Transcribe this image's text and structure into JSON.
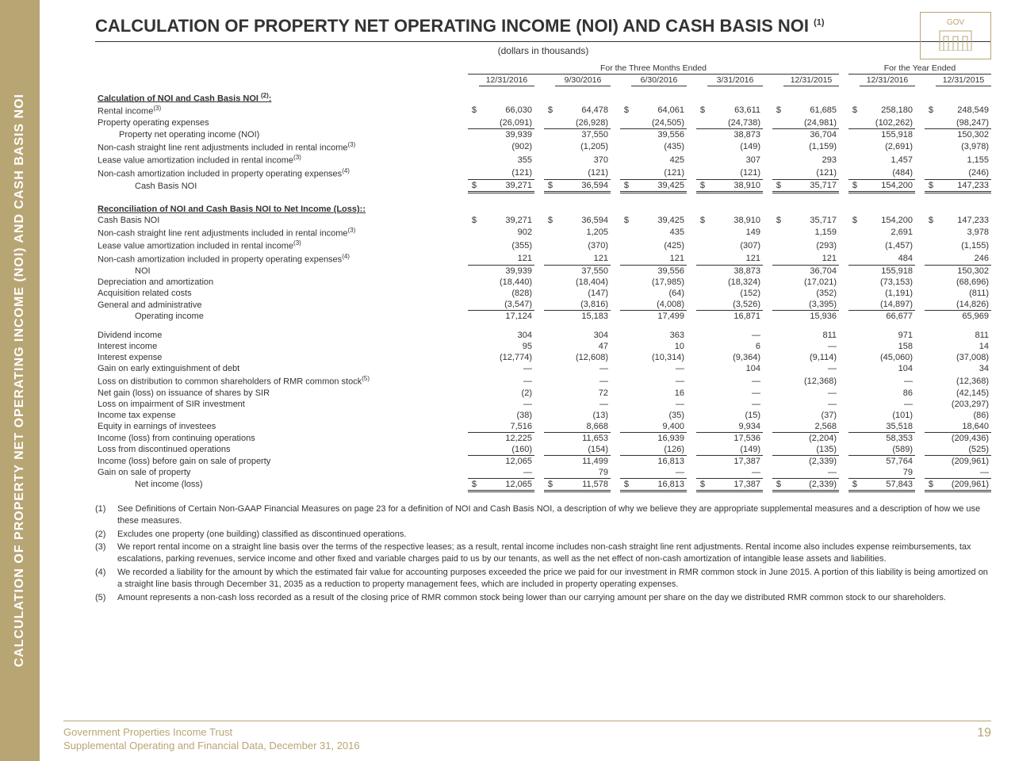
{
  "sidebar_title": "CALCULATION OF PROPERTY NET OPERATING INCOME (NOI) AND CASH BASIS NOI",
  "title": "CALCULATION OF PROPERTY NET OPERATING INCOME (NOI) AND CASH BASIS NOI",
  "title_sup": "(1)",
  "subtitle": "(dollars in thousands)",
  "logo_text": "GOV",
  "period_headers": {
    "three_months": "For the Three Months Ended",
    "year": "For the Year Ended"
  },
  "cols": [
    "12/31/2016",
    "9/30/2016",
    "6/30/2016",
    "3/31/2016",
    "12/31/2015",
    "12/31/2016",
    "12/31/2015"
  ],
  "section1": "Calculation of NOI and Cash Basis NOI",
  "section1_sup": "(2)",
  "section2": "Reconciliation of NOI and Cash Basis NOI to Net Income (Loss):",
  "rows": {
    "rental_income": {
      "l": "Rental income",
      "sup": "(3)",
      "d": true,
      "v": [
        "66,030",
        "64,478",
        "64,061",
        "63,611",
        "61,685",
        "258,180",
        "248,549"
      ]
    },
    "prop_op_exp": {
      "l": "Property operating expenses",
      "ul": true,
      "v": [
        "(26,091)",
        "(26,928)",
        "(24,505)",
        "(24,738)",
        "(24,981)",
        "(102,262)",
        "(98,247)"
      ]
    },
    "noi1": {
      "l": "Property net operating income (NOI)",
      "indent": 1,
      "v": [
        "39,939",
        "37,550",
        "39,556",
        "38,873",
        "36,704",
        "155,918",
        "150,302"
      ]
    },
    "noncash_sl1": {
      "l": "Non-cash straight line rent adjustments included in rental income",
      "sup": "(3)",
      "v": [
        "(902)",
        "(1,205)",
        "(435)",
        "(149)",
        "(1,159)",
        "(2,691)",
        "(3,978)"
      ]
    },
    "lease_val1": {
      "l": "Lease value amortization included in rental income",
      "sup": "(3)",
      "v": [
        "355",
        "370",
        "425",
        "307",
        "293",
        "1,457",
        "1,155"
      ]
    },
    "noncash_am1": {
      "l": "Non-cash amortization included in property operating expenses",
      "sup": "(4)",
      "ul": true,
      "v": [
        "(121)",
        "(121)",
        "(121)",
        "(121)",
        "(121)",
        "(484)",
        "(246)"
      ]
    },
    "cash_noi1": {
      "l": "Cash Basis NOI",
      "indent": 2,
      "d": true,
      "dbl": true,
      "v": [
        "39,271",
        "36,594",
        "39,425",
        "38,910",
        "35,717",
        "154,200",
        "147,233"
      ]
    },
    "cash_noi2": {
      "l": "Cash Basis NOI",
      "d": true,
      "v": [
        "39,271",
        "36,594",
        "39,425",
        "38,910",
        "35,717",
        "154,200",
        "147,233"
      ]
    },
    "noncash_sl2": {
      "l": "Non-cash straight line rent adjustments included in rental income",
      "sup": "(3)",
      "v": [
        "902",
        "1,205",
        "435",
        "149",
        "1,159",
        "2,691",
        "3,978"
      ]
    },
    "lease_val2": {
      "l": "Lease value amortization included in rental income",
      "sup": "(3)",
      "v": [
        "(355)",
        "(370)",
        "(425)",
        "(307)",
        "(293)",
        "(1,457)",
        "(1,155)"
      ]
    },
    "noncash_am2": {
      "l": "Non-cash amortization included in property operating expenses",
      "sup": "(4)",
      "ul": true,
      "v": [
        "121",
        "121",
        "121",
        "121",
        "121",
        "484",
        "246"
      ]
    },
    "noi2": {
      "l": "NOI",
      "indent": 2,
      "v": [
        "39,939",
        "37,550",
        "39,556",
        "38,873",
        "36,704",
        "155,918",
        "150,302"
      ]
    },
    "dep_am": {
      "l": "Depreciation and amortization",
      "v": [
        "(18,440)",
        "(18,404)",
        "(17,985)",
        "(18,324)",
        "(17,021)",
        "(73,153)",
        "(68,696)"
      ]
    },
    "acq": {
      "l": "Acquisition related costs",
      "v": [
        "(828)",
        "(147)",
        "(64)",
        "(152)",
        "(352)",
        "(1,191)",
        "(811)"
      ]
    },
    "ga": {
      "l": "General and administrative",
      "ul": true,
      "v": [
        "(3,547)",
        "(3,816)",
        "(4,008)",
        "(3,526)",
        "(3,395)",
        "(14,897)",
        "(14,826)"
      ]
    },
    "op_inc": {
      "l": "Operating income",
      "indent": 2,
      "v": [
        "17,124",
        "15,183",
        "17,499",
        "16,871",
        "15,936",
        "66,677",
        "65,969"
      ]
    },
    "div_inc": {
      "l": "Dividend income",
      "v": [
        "304",
        "304",
        "363",
        "—",
        "811",
        "971",
        "811"
      ]
    },
    "int_inc": {
      "l": "Interest income",
      "v": [
        "95",
        "47",
        "10",
        "6",
        "—",
        "158",
        "14"
      ]
    },
    "int_exp": {
      "l": "Interest expense",
      "v": [
        "(12,774)",
        "(12,608)",
        "(10,314)",
        "(9,364)",
        "(9,114)",
        "(45,060)",
        "(37,008)"
      ]
    },
    "gain_ext": {
      "l": "Gain on early extinguishment of debt",
      "v": [
        "—",
        "—",
        "—",
        "104",
        "—",
        "104",
        "34"
      ]
    },
    "loss_dist": {
      "l": "Loss on distribution to common shareholders of RMR common stock",
      "sup": "(5)",
      "v": [
        "—",
        "—",
        "—",
        "—",
        "(12,368)",
        "—",
        "(12,368)"
      ]
    },
    "net_gain_sir": {
      "l": "Net gain (loss) on issuance of shares by SIR",
      "v": [
        "(2)",
        "72",
        "16",
        "—",
        "—",
        "86",
        "(42,145)"
      ]
    },
    "loss_imp": {
      "l": "Loss on impairment of SIR investment",
      "v": [
        "—",
        "—",
        "—",
        "—",
        "—",
        "—",
        "(203,297)"
      ]
    },
    "tax": {
      "l": "Income tax expense",
      "v": [
        "(38)",
        "(13)",
        "(35)",
        "(15)",
        "(37)",
        "(101)",
        "(86)"
      ]
    },
    "equity": {
      "l": "Equity in earnings of investees",
      "ul": true,
      "v": [
        "7,516",
        "8,668",
        "9,400",
        "9,934",
        "2,568",
        "35,518",
        "18,640"
      ]
    },
    "inc_cont": {
      "l": "Income (loss) from continuing operations",
      "v": [
        "12,225",
        "11,653",
        "16,939",
        "17,536",
        "(2,204)",
        "58,353",
        "(209,436)"
      ]
    },
    "loss_disc": {
      "l": "Loss from discontinued operations",
      "ul": true,
      "v": [
        "(160)",
        "(154)",
        "(126)",
        "(149)",
        "(135)",
        "(589)",
        "(525)"
      ]
    },
    "inc_before": {
      "l": "Income (loss) before gain on sale of property",
      "v": [
        "12,065",
        "11,499",
        "16,813",
        "17,387",
        "(2,339)",
        "57,764",
        "(209,961)"
      ]
    },
    "gain_sale": {
      "l": "Gain on sale of property",
      "ul": true,
      "v": [
        "—",
        "79",
        "—",
        "—",
        "—",
        "79",
        "—"
      ]
    },
    "net_inc": {
      "l": "Net income (loss)",
      "indent": 2,
      "d": true,
      "dbl": true,
      "v": [
        "12,065",
        "11,578",
        "16,813",
        "17,387",
        "(2,339)",
        "57,843",
        "(209,961)"
      ]
    }
  },
  "footnotes": [
    {
      "n": "(1)",
      "t": "See Definitions of Certain Non-GAAP Financial Measures on page 23 for a definition of NOI and Cash Basis NOI, a description of why we believe they are appropriate supplemental measures and a description of how we use these measures."
    },
    {
      "n": "(2)",
      "t": "Excludes one property (one building) classified as discontinued operations."
    },
    {
      "n": "(3)",
      "t": "We report rental income on a straight line basis over the terms of the respective leases; as a result, rental income includes non-cash straight line rent adjustments. Rental income also includes expense reimbursements, tax escalations, parking revenues, service income and other fixed and variable charges paid to us by our tenants, as well as the net effect of non-cash amortization of intangible lease assets and liabilities."
    },
    {
      "n": "(4)",
      "t": "We recorded a liability for the amount by which the estimated fair value for accounting purposes exceeded the price we paid for our investment in RMR common stock in June 2015. A portion of this liability is being amortized on a straight line basis through December 31, 2035 as a reduction to property management fees, which are included in property operating expenses."
    },
    {
      "n": "(5)",
      "t": "Amount represents a non-cash loss recorded as a result of the closing price of RMR common stock being lower than our carrying amount per share on the day we distributed RMR common stock to our shareholders."
    }
  ],
  "footer": {
    "company": "Government Properties Income Trust",
    "subtitle": "Supplemental Operating and Financial Data, December 31, 2016",
    "page": "19"
  }
}
